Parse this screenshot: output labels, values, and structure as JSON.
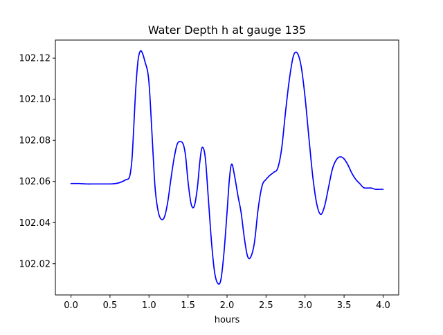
{
  "chart_data": {
    "type": "line",
    "title": "Water Depth h at gauge 135",
    "xlabel": "hours",
    "ylabel": "",
    "xlim": [
      -0.2,
      4.2
    ],
    "ylim": [
      102.0048,
      102.1288
    ],
    "xticks": [
      0.0,
      0.5,
      1.0,
      1.5,
      2.0,
      2.5,
      3.0,
      3.5,
      4.0
    ],
    "xtick_labels": [
      "0.0",
      "0.5",
      "1.0",
      "1.5",
      "2.0",
      "2.5",
      "3.0",
      "3.5",
      "4.0"
    ],
    "yticks": [
      102.02,
      102.04,
      102.06,
      102.08,
      102.1,
      102.12
    ],
    "ytick_labels": [
      "102.02",
      "102.04",
      "102.06",
      "102.08",
      "102.10",
      "102.12"
    ],
    "grid": false,
    "series": [
      {
        "color": "#0000ff",
        "x": [
          0.0,
          0.1,
          0.2,
          0.3,
          0.4,
          0.5,
          0.55,
          0.6,
          0.65,
          0.7,
          0.75,
          0.78,
          0.8,
          0.83,
          0.86,
          0.89,
          0.92,
          0.95,
          0.98,
          1.0,
          1.02,
          1.05,
          1.08,
          1.12,
          1.16,
          1.2,
          1.24,
          1.28,
          1.32,
          1.36,
          1.4,
          1.44,
          1.47,
          1.5,
          1.54,
          1.58,
          1.62,
          1.65,
          1.68,
          1.72,
          1.76,
          1.8,
          1.84,
          1.88,
          1.92,
          1.96,
          2.0,
          2.03,
          2.06,
          2.1,
          2.14,
          2.18,
          2.22,
          2.26,
          2.3,
          2.35,
          2.4,
          2.45,
          2.5,
          2.55,
          2.6,
          2.65,
          2.7,
          2.75,
          2.8,
          2.85,
          2.9,
          2.95,
          3.0,
          3.05,
          3.1,
          3.15,
          3.2,
          3.25,
          3.3,
          3.35,
          3.4,
          3.45,
          3.5,
          3.55,
          3.6,
          3.65,
          3.7,
          3.75,
          3.8,
          3.85,
          3.9,
          3.95,
          4.0
        ],
        "y": [
          102.059,
          102.059,
          102.0588,
          102.0588,
          102.0588,
          102.0588,
          102.0589,
          102.0592,
          102.0598,
          102.0608,
          102.0622,
          102.07,
          102.083,
          102.105,
          102.119,
          102.1235,
          102.122,
          102.118,
          102.114,
          102.108,
          102.096,
          102.075,
          102.056,
          102.045,
          102.0415,
          102.043,
          102.05,
          102.061,
          102.071,
          102.078,
          102.0795,
          102.078,
          102.072,
          102.06,
          102.049,
          102.048,
          102.057,
          102.069,
          102.0765,
          102.072,
          102.052,
          102.031,
          102.016,
          102.0105,
          102.012,
          102.025,
          102.045,
          102.061,
          102.0685,
          102.062,
          102.053,
          102.045,
          102.033,
          102.024,
          102.023,
          102.03,
          102.047,
          102.058,
          102.061,
          102.063,
          102.0645,
          102.0665,
          102.076,
          102.094,
          102.11,
          102.121,
          102.1225,
          102.116,
          102.101,
          102.081,
          102.062,
          102.049,
          102.044,
          102.048,
          102.057,
          102.066,
          102.0705,
          102.072,
          102.071,
          102.068,
          102.064,
          102.061,
          102.059,
          102.057,
          102.0568,
          102.0568,
          102.0562,
          102.0562,
          102.0562
        ]
      }
    ]
  }
}
